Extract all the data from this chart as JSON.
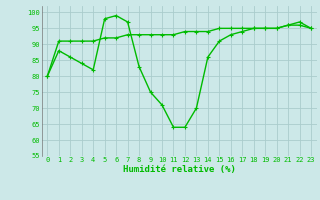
{
  "x": [
    0,
    1,
    2,
    3,
    4,
    5,
    6,
    7,
    8,
    9,
    10,
    11,
    12,
    13,
    14,
    15,
    16,
    17,
    18,
    19,
    20,
    21,
    22,
    23
  ],
  "line1": [
    80,
    91,
    91,
    91,
    91,
    92,
    92,
    93,
    93,
    93,
    93,
    93,
    94,
    94,
    94,
    95,
    95,
    95,
    95,
    95,
    95,
    96,
    96,
    95
  ],
  "line2": [
    80,
    88,
    86,
    84,
    82,
    98,
    99,
    97,
    83,
    75,
    71,
    64,
    64,
    70,
    86,
    91,
    93,
    94,
    95,
    95,
    95,
    96,
    97,
    95
  ],
  "bg_color": "#cce8e8",
  "grid_color": "#aacccc",
  "line_color": "#00bb00",
  "xlabel": "Humidité relative (%)",
  "xlabel_color": "#00bb00",
  "tick_color": "#00bb00",
  "ylim": [
    55,
    102
  ],
  "yticks": [
    55,
    60,
    65,
    70,
    75,
    80,
    85,
    90,
    95,
    100
  ],
  "xlim": [
    -0.5,
    23.5
  ],
  "marker_size": 3,
  "linewidth": 1.0
}
